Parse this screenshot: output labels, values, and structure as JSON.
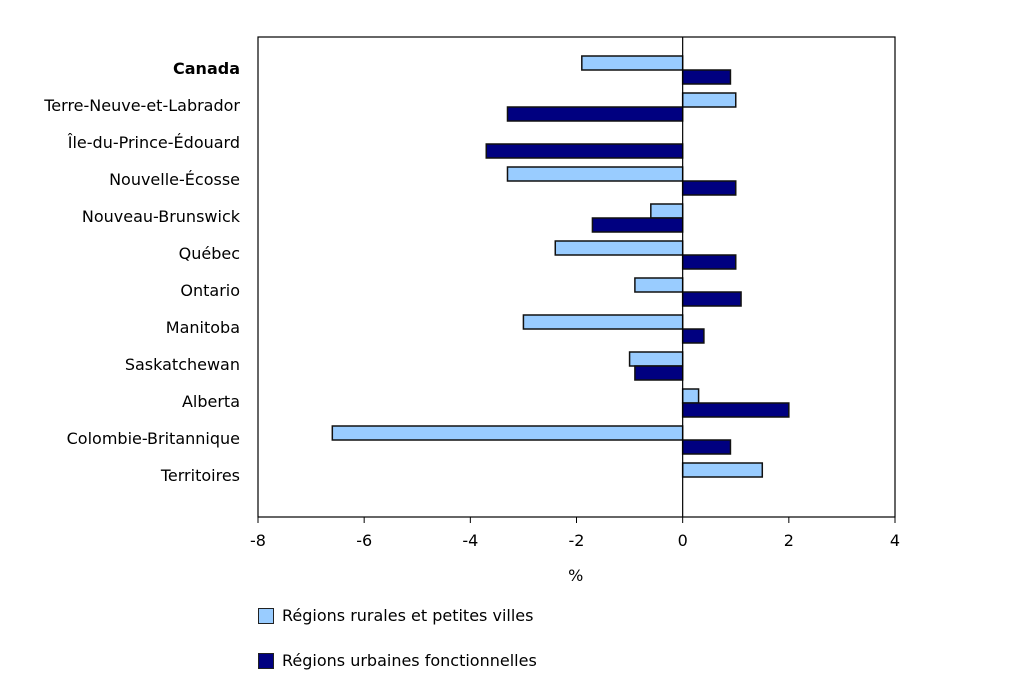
{
  "chart_data": {
    "type": "bar",
    "orientation": "horizontal",
    "categories": [
      "Canada",
      "Terre-Neuve-et-Labrador",
      "Île-du-Prince-Édouard",
      "Nouvelle-Écosse",
      "Nouveau-Brunswick",
      "Québec",
      "Ontario",
      "Manitoba",
      "Saskatchewan",
      "Alberta",
      "Colombie-Britannique",
      "Territoires"
    ],
    "bold_categories": [
      "Canada"
    ],
    "series": [
      {
        "name": "Régions rurales et petites villes",
        "color": "#99CCFF",
        "values": [
          -1.9,
          1.0,
          null,
          -3.3,
          -0.6,
          -2.4,
          -0.9,
          -3.0,
          -1.0,
          0.3,
          -6.6,
          1.5
        ]
      },
      {
        "name": "Régions urbaines fonctionnelles",
        "color": "#000080",
        "values": [
          0.9,
          -3.3,
          -3.7,
          1.0,
          -1.7,
          1.0,
          1.1,
          0.4,
          -0.9,
          2.0,
          0.9,
          null
        ]
      }
    ],
    "xlabel": "%",
    "xlim": [
      -8,
      4
    ],
    "xticks": [
      "-8",
      "-6",
      "-4",
      "-2",
      "0",
      "2",
      "4"
    ],
    "grid": false,
    "legend_position": "bottom-left"
  }
}
